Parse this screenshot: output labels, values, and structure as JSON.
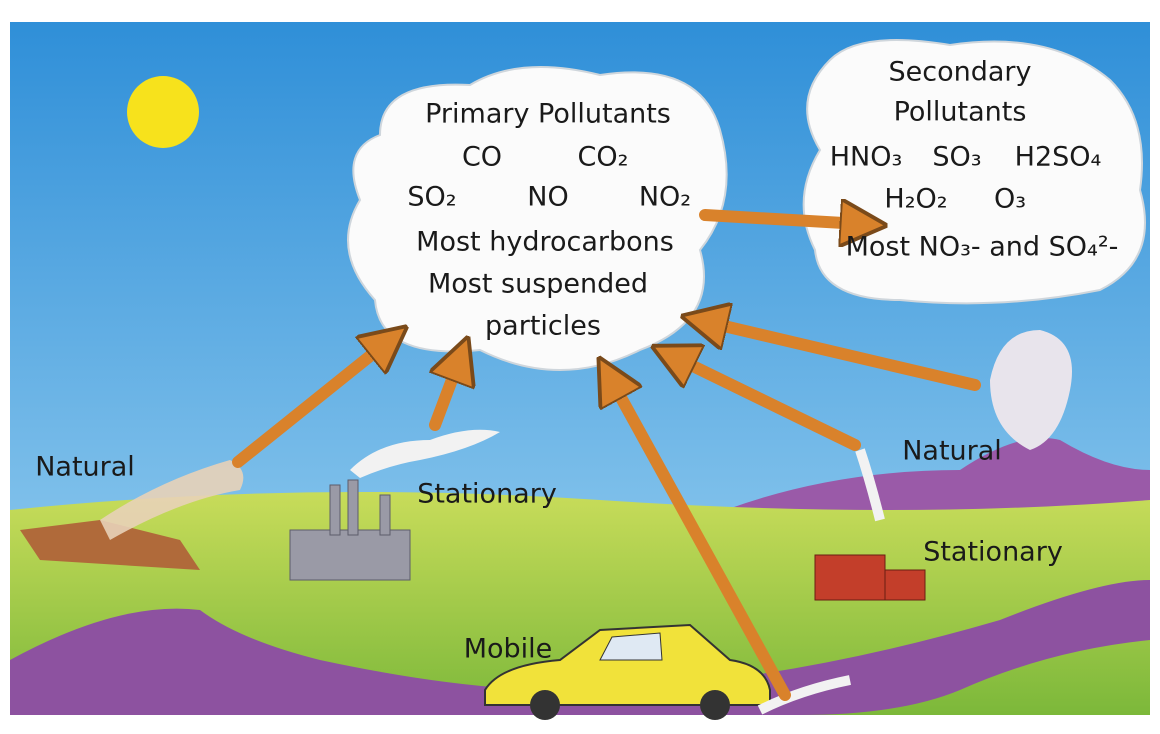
{
  "primary_cloud": {
    "title": "Primary Pollutants",
    "items": [
      "CO",
      "CO₂",
      "SO₂",
      "NO",
      "NO₂"
    ],
    "lines": [
      "Most hydrocarbons",
      "Most suspended",
      "particles"
    ]
  },
  "secondary_cloud": {
    "title_lines": [
      "Secondary",
      "Pollutants"
    ],
    "items": [
      "HNO₃",
      "SO₃",
      "H2SO₄",
      "H₂O₂",
      "O₃"
    ],
    "note": "Most NO₃- and SO₄²-"
  },
  "sources": [
    "Natural",
    "Stationary",
    "Mobile",
    "Natural",
    "Stationary"
  ]
}
